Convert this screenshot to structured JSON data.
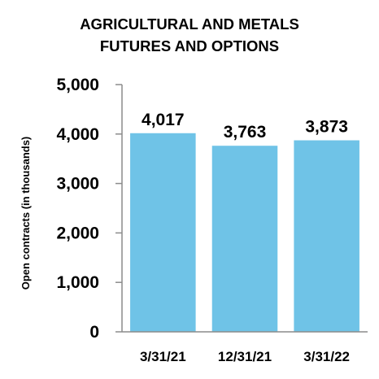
{
  "chart_data": {
    "type": "bar",
    "title_lines": [
      "AGRICULTURAL AND METALS",
      "FUTURES AND OPTIONS"
    ],
    "ylabel": "Open contracts (in thousands)",
    "xlabel": "",
    "categories": [
      "3/31/21",
      "12/31/21",
      "3/31/22"
    ],
    "values": [
      4017,
      3763,
      3873
    ],
    "data_labels": [
      "4,017",
      "3,763",
      "3,873"
    ],
    "ylim": [
      0,
      5000
    ],
    "yticks": [
      0,
      1000,
      2000,
      3000,
      4000,
      5000
    ],
    "ytick_labels": [
      "0",
      "1,000",
      "2,000",
      "3,000",
      "4,000",
      "5,000"
    ],
    "grid": false,
    "legend": "none",
    "bar_color": "#6FC3E7"
  }
}
